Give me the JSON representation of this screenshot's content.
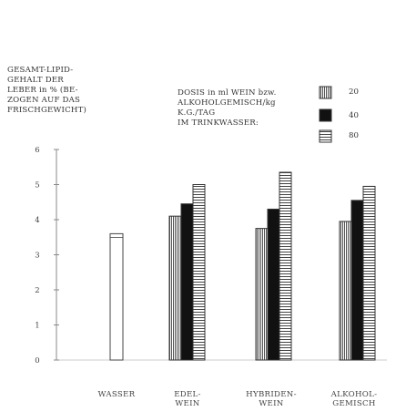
{
  "chart_data": {
    "type": "bar",
    "ylabel_lines": [
      "GESAMT-LIPID-",
      "GEHALT DER",
      "LEBER in % (BE-",
      "ZOGEN AUF DAS",
      "FRISCHGEWICHT)"
    ],
    "legend_title_lines": [
      "DOSIS in ml WEIN bzw.",
      "ALKOHOLGEMISCH/kg",
      "K.G./TAG",
      "IM TRINKWASSER:"
    ],
    "ylim": [
      0,
      6
    ],
    "yticks": [
      "0",
      "1",
      "2",
      "3",
      "4",
      "5",
      "6"
    ],
    "categories": [
      [
        "WASSER"
      ],
      [
        "EDEL-",
        "WEIN"
      ],
      [
        "HYBRIDEN-",
        "WEIN"
      ],
      [
        "ALKOHOL-",
        "GEMISCH"
      ]
    ],
    "control": {
      "category": 0,
      "value": 3.6
    },
    "series": [
      {
        "name": "20",
        "pattern": "vertical-stripes",
        "values": [
          null,
          4.1,
          3.75,
          3.95
        ]
      },
      {
        "name": "40",
        "pattern": "solid-black",
        "values": [
          null,
          4.45,
          4.3,
          4.55
        ]
      },
      {
        "name": "80",
        "pattern": "horizontal-stripes",
        "values": [
          null,
          5.0,
          5.35,
          4.95
        ]
      }
    ],
    "grid": false,
    "legend_position": "top-right"
  }
}
